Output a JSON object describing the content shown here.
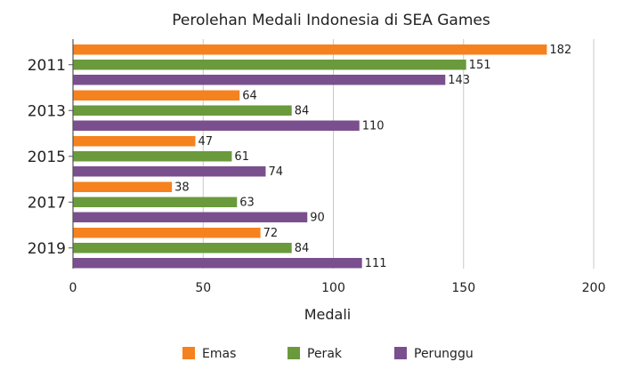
{
  "chart_data": {
    "type": "bar",
    "orientation": "horizontal",
    "title": "Perolehan Medali Indonesia di SEA Games",
    "xlabel": "Medali",
    "ylabel": "",
    "xlim": [
      0,
      200
    ],
    "xticks": [
      0,
      50,
      100,
      150,
      200
    ],
    "grid": true,
    "legend_position": "bottom",
    "categories": [
      "2011",
      "2013",
      "2015",
      "2017",
      "2019"
    ],
    "series": [
      {
        "name": "Emas",
        "color": "#F5821F",
        "values": [
          182,
          64,
          47,
          38,
          72
        ]
      },
      {
        "name": "Perak",
        "color": "#6A9A3C",
        "values": [
          151,
          84,
          61,
          63,
          84
        ]
      },
      {
        "name": "Perunggu",
        "color": "#7A4F8E",
        "values": [
          143,
          110,
          74,
          90,
          111
        ]
      }
    ]
  }
}
